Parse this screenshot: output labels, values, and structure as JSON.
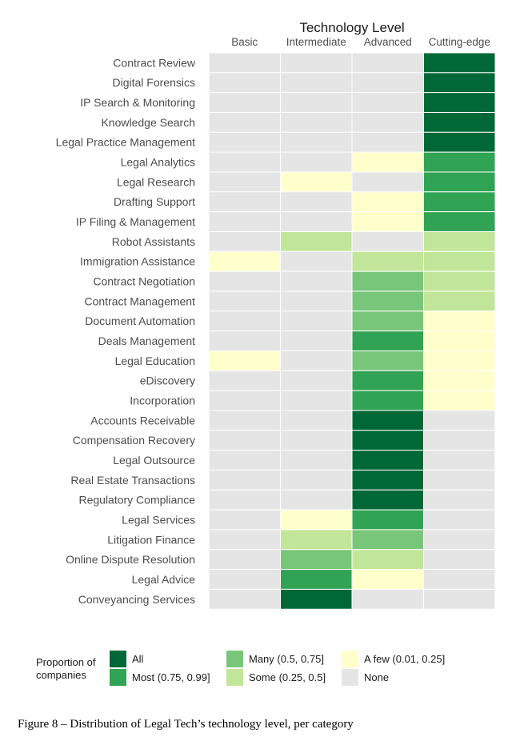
{
  "chart_data": {
    "type": "heatmap",
    "title": "Technology Level",
    "columns": [
      "Basic",
      "Intermediate",
      "Advanced",
      "Cutting-edge"
    ],
    "rows": [
      "Contract Review",
      "Digital Forensics",
      "IP Search & Monitoring",
      "Knowledge Search",
      "Legal Practice Management",
      "Legal Analytics",
      "Legal Research",
      "Drafting Support",
      "IP Filing & Management",
      "Robot Assistants",
      "Immigration Assistance",
      "Contract Negotiation",
      "Contract Management",
      "Document Automation",
      "Deals Management",
      "Legal Education",
      "eDiscovery",
      "Incorporation",
      "Accounts Receivable",
      "Compensation Recovery",
      "Legal Outsource",
      "Real Estate Transactions",
      "Regulatory Compliance",
      "Legal Services",
      "Litigation Finance",
      "Online Dispute Resolution",
      "Legal Advice",
      "Conveyancing Services"
    ],
    "values": [
      [
        "None",
        "None",
        "None",
        "All"
      ],
      [
        "None",
        "None",
        "None",
        "All"
      ],
      [
        "None",
        "None",
        "None",
        "All"
      ],
      [
        "None",
        "None",
        "None",
        "All"
      ],
      [
        "None",
        "None",
        "None",
        "All"
      ],
      [
        "None",
        "None",
        "A few",
        "Most"
      ],
      [
        "None",
        "A few",
        "None",
        "Most"
      ],
      [
        "None",
        "None",
        "A few",
        "Most"
      ],
      [
        "None",
        "None",
        "A few",
        "Most"
      ],
      [
        "None",
        "Some",
        "None",
        "Some"
      ],
      [
        "A few",
        "None",
        "Some",
        "Some"
      ],
      [
        "None",
        "None",
        "Many",
        "Some"
      ],
      [
        "None",
        "None",
        "Many",
        "Some"
      ],
      [
        "None",
        "None",
        "Many",
        "A few"
      ],
      [
        "None",
        "None",
        "Most",
        "A few"
      ],
      [
        "A few",
        "None",
        "Many",
        "A few"
      ],
      [
        "None",
        "None",
        "Most",
        "A few"
      ],
      [
        "None",
        "None",
        "Most",
        "A few"
      ],
      [
        "None",
        "None",
        "All",
        "None"
      ],
      [
        "None",
        "None",
        "All",
        "None"
      ],
      [
        "None",
        "None",
        "All",
        "None"
      ],
      [
        "None",
        "None",
        "All",
        "None"
      ],
      [
        "None",
        "None",
        "All",
        "None"
      ],
      [
        "None",
        "A few",
        "Most",
        "None"
      ],
      [
        "None",
        "Some",
        "Many",
        "None"
      ],
      [
        "None",
        "Many",
        "Some",
        "None"
      ],
      [
        "None",
        "Most",
        "A few",
        "None"
      ],
      [
        "None",
        "All",
        "None",
        "None"
      ]
    ],
    "legend": {
      "title_line1": "Proportion of",
      "title_line2": "companies",
      "placement": "bottom",
      "items": [
        {
          "key": "All",
          "label": "All",
          "color": "#006837"
        },
        {
          "key": "Most",
          "label": "Most (0.75, 0.99]",
          "color": "#31a354"
        },
        {
          "key": "Many",
          "label": "Many (0.5, 0.75]",
          "color": "#78c679"
        },
        {
          "key": "Some",
          "label": "Some (0.25, 0.5]",
          "color": "#c2e699"
        },
        {
          "key": "A few",
          "label": "A few (0.01, 0.25]",
          "color": "#ffffcc"
        },
        {
          "key": "None",
          "label": "None",
          "color": "#e5e5e5"
        }
      ]
    }
  },
  "caption": "Figure 8 – Distribution of Legal Tech’s technology level, per category"
}
